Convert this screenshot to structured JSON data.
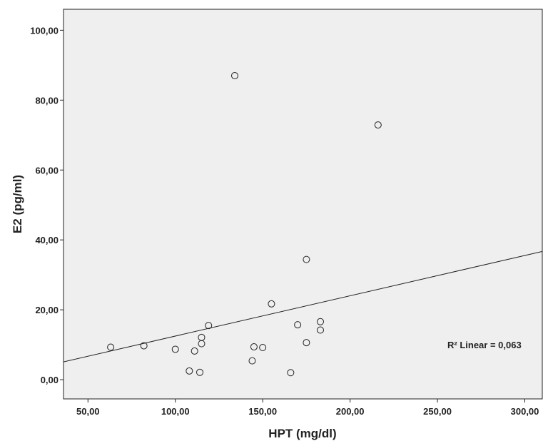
{
  "chart_data": {
    "type": "scatter",
    "xlabel": "HPT (mg/dl)",
    "ylabel": "E2 (pg/ml)",
    "xlim": [
      36,
      310
    ],
    "ylim": [
      -5.5,
      106
    ],
    "x_ticks": [
      50,
      100,
      150,
      200,
      250,
      300
    ],
    "x_tick_labels": [
      "50,00",
      "100,00",
      "150,00",
      "200,00",
      "250,00",
      "300,00"
    ],
    "y_ticks": [
      0,
      20,
      40,
      60,
      80,
      100
    ],
    "y_tick_labels": [
      "0,00",
      "20,00",
      "40,00",
      "60,00",
      "80,00",
      "100,00"
    ],
    "grid": false,
    "points": [
      {
        "x": 63,
        "y": 9.3
      },
      {
        "x": 82,
        "y": 9.7
      },
      {
        "x": 100,
        "y": 8.7
      },
      {
        "x": 108,
        "y": 2.5
      },
      {
        "x": 111,
        "y": 8.2
      },
      {
        "x": 114,
        "y": 2.1
      },
      {
        "x": 115,
        "y": 10.3
      },
      {
        "x": 115,
        "y": 12.1
      },
      {
        "x": 119,
        "y": 15.5
      },
      {
        "x": 134,
        "y": 87.0
      },
      {
        "x": 144,
        "y": 5.4
      },
      {
        "x": 145,
        "y": 9.4
      },
      {
        "x": 150,
        "y": 9.2
      },
      {
        "x": 155,
        "y": 21.7
      },
      {
        "x": 166,
        "y": 2.0
      },
      {
        "x": 170,
        "y": 15.7
      },
      {
        "x": 175,
        "y": 34.4
      },
      {
        "x": 175,
        "y": 10.6
      },
      {
        "x": 183,
        "y": 16.6
      },
      {
        "x": 183,
        "y": 14.2
      },
      {
        "x": 216,
        "y": 72.9
      }
    ],
    "fit_line": {
      "x": [
        36,
        310
      ],
      "y": [
        5.1,
        36.7
      ]
    },
    "annotation": "R² Linear = 0,063",
    "colors": {
      "plot_bg": "#efefef",
      "marker_stroke": "#222222",
      "fit_line": "#222222"
    }
  }
}
